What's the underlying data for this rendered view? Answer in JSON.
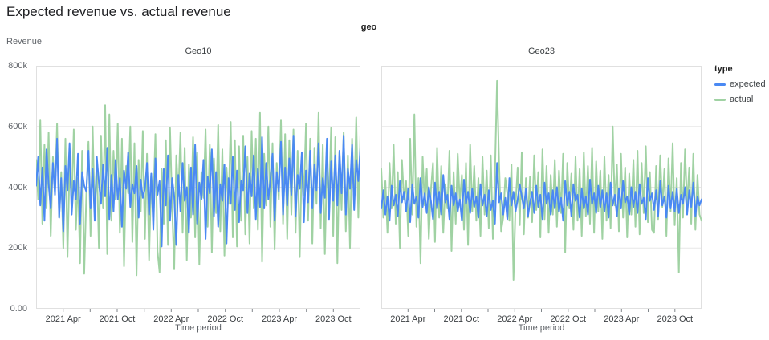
{
  "page_title": "Expected revenue vs. actual revenue",
  "facet_dimension_label": "geo",
  "legend": {
    "title": "type",
    "items": [
      {
        "label": "expected",
        "color": "#4a89f3"
      },
      {
        "label": "actual",
        "color": "#a0d2a3"
      }
    ]
  },
  "colors": {
    "expected_line": "#4a89f3",
    "actual_line": "#a0d2a3",
    "gridline": "#e7e7e7",
    "panel_border": "#e0e0e0",
    "tick_mark": "#80868b",
    "title_text": "#202124",
    "axis_text": "#3c4043",
    "muted_text": "#5f6368"
  },
  "chart_data": {
    "type": "line",
    "title": "Expected revenue vs. actual revenue",
    "facet_by": "geo",
    "xlabel": "Time period",
    "ylabel": "Revenue",
    "ylim": [
      0,
      800000
    ],
    "grid": true,
    "grid_values_k": [
      200,
      400,
      600
    ],
    "y_tick_labels_top_to_bottom": [
      "800k",
      "600k",
      "400k",
      "200k",
      "0.00"
    ],
    "x_range": {
      "start": "2021-01",
      "end": "2023-12",
      "interval": "weekly",
      "points_per_series": 156,
      "span_months": 36
    },
    "x_ticks": [
      {
        "month": 3,
        "label": "2021 Apr"
      },
      {
        "month": 6,
        "label": ""
      },
      {
        "month": 9,
        "label": "2021 Oct"
      },
      {
        "month": 12,
        "label": ""
      },
      {
        "month": 15,
        "label": "2022 Apr"
      },
      {
        "month": 18,
        "label": ""
      },
      {
        "month": 21,
        "label": "2022 Oct"
      },
      {
        "month": 24,
        "label": ""
      },
      {
        "month": 27,
        "label": "2023 Apr"
      },
      {
        "month": 30,
        "label": ""
      },
      {
        "month": 33,
        "label": "2023 Oct"
      }
    ],
    "values_unit": "thousands of revenue (k); estimated from pixels",
    "legend_position": "right",
    "facets": [
      {
        "name": "Geo10",
        "series": [
          {
            "name": "expected",
            "color": "#4a89f3",
            "values_k": [
              405,
              500,
              340,
              465,
              290,
              525,
              410,
              330,
              480,
              375,
              560,
              300,
              430,
              255,
              470,
              390,
              545,
              310,
              420,
              360,
              510,
              280,
              450,
              405,
              385,
              520,
              330,
              460,
              290,
              500,
              415,
              345,
              475,
              370,
              530,
              295,
              440,
              320,
              490,
              360,
              430,
              270,
              455,
              395,
              515,
              335,
              410,
              380,
              470,
              300,
              425,
              365,
              395,
              480,
              310,
              445,
              260,
              495,
              375,
              420,
              205,
              460,
              340,
              505,
              290,
              430,
              370,
              210,
              440,
              320,
              480,
              355,
              400,
              250,
              465,
              310,
              540,
              280,
              415,
              360,
              490,
              230,
              435,
              380,
              525,
              305,
              450,
              270,
              410,
              355,
              475,
              215,
              430,
              345,
              500,
              325,
              455,
              285,
              420,
              390,
              535,
              315,
              445,
              370,
              505,
              295,
              460,
              335,
              565,
              330,
              480,
              360,
              425,
              510,
              290,
              450,
              385,
              550,
              310,
              465,
              340,
              495,
              375,
              570,
              305,
              440,
              395,
              515,
              285,
              455,
              350,
              520,
              330,
              475,
              390,
              545,
              315,
              430,
              365,
              560,
              295,
              485,
              355,
              505,
              340,
              520,
              380,
              570,
              310,
              460,
              395,
              540,
              325,
              490,
              420,
              530
            ]
          },
          {
            "name": "actual",
            "color": "#a0d2a3",
            "values_k": [
              490,
              360,
              620,
              280,
              540,
              330,
              580,
              240,
              500,
              390,
              610,
              300,
              450,
              200,
              560,
              170,
              480,
              350,
              590,
              260,
              430,
              150,
              520,
              115,
              380,
              550,
              240,
              600,
              310,
              480,
              200,
              570,
              330,
              670,
              180,
              640,
              290,
              520,
              360,
              610,
              250,
              560,
              140,
              470,
              380,
              600,
              220,
              545,
              110,
              490,
              320,
              585,
              230,
              510,
              160,
              440,
              350,
              575,
              190,
              120,
              460,
              280,
              555,
              210,
              595,
              340,
              130,
              505,
              370,
              580,
              250,
              530,
              160,
              475,
              300,
              565,
              235,
              515,
              145,
              450,
              365,
              590,
              270,
              540,
              185,
              495,
              315,
              605,
              255,
              525,
              175,
              465,
              345,
              615,
              235,
              555,
              205,
              535,
              290,
              570,
              245,
              500,
              215,
              585,
              330,
              560,
              260,
              645,
              155,
              510,
              340,
              600,
              270,
              545,
              195,
              480,
              360,
              620,
              280,
              575,
              230,
              555,
              310,
              590,
              250,
              520,
              170,
              495,
              375,
              610,
              290,
              560,
              215,
              530,
              345,
              645,
              265,
              540,
              180,
              475,
              355,
              595,
              240,
              565,
              150,
              515,
              325,
              580,
              255,
              505,
              200,
              560,
              340,
              630,
              300,
              575
            ]
          }
        ]
      },
      {
        "name": "Geo23",
        "series": [
          {
            "name": "expected",
            "color": "#4a89f3",
            "values_k": [
              330,
              390,
              310,
              370,
              290,
              405,
              340,
              375,
              305,
              420,
              350,
              385,
              320,
              395,
              285,
              410,
              345,
              370,
              300,
              430,
              335,
              380,
              315,
              400,
              355,
              295,
              415,
              330,
              385,
              310,
              440,
              350,
              375,
              295,
              405,
              340,
              380,
              320,
              360,
              290,
              425,
              345,
              385,
              315,
              395,
              335,
              370,
              300,
              410,
              340,
              375,
              305,
              390,
              325,
              355,
              280,
              480,
              350,
              380,
              310,
              365,
              295,
              430,
              340,
              385,
              320,
              360,
              410,
              370,
              330,
              395,
              305,
              350,
              385,
              315,
              405,
              335,
              375,
              295,
              415,
              345,
              380,
              310,
              390,
              330,
              400,
              320,
              365,
              290,
              420,
              340,
              385,
              305,
              410,
              355,
              375,
              300,
              395,
              330,
              370,
              310,
              425,
              345,
              380,
              315,
              405,
              335,
              390,
              320,
              380,
              300,
              415,
              340,
              375,
              305,
              395,
              330,
              420,
              350,
              370,
              310,
              400,
              335,
              385,
              315,
              410,
              345,
              365,
              295,
              430,
              355,
              380,
              325,
              390,
              305,
              420,
              340,
              370,
              300,
              405,
              330,
              385,
              320,
              395,
              315,
              375,
              345,
              400,
              310,
              390,
              335,
              415,
              305,
              370,
              340,
              360
            ]
          },
          {
            "name": "actual",
            "color": "#a0d2a3",
            "values_k": [
              460,
              300,
              420,
              250,
              480,
              330,
              540,
              280,
              450,
              200,
              490,
              360,
              420,
              240,
              560,
              310,
              640,
              270,
              430,
              150,
              500,
              340,
              460,
              230,
              390,
              480,
              220,
              530,
              300,
              470,
              250,
              410,
              330,
              520,
              190,
              450,
              280,
              510,
              350,
              440,
              260,
              480,
              210,
              540,
              320,
              470,
              290,
              430,
              240,
              500,
              310,
              455,
              265,
              505,
              230,
              445,
              750,
              485,
              255,
              300,
              430,
              380,
              290,
              475,
              95,
              345,
              465,
              275,
              515,
              245,
              430,
              300,
              435,
              285,
              505,
              325,
              450,
              235,
              525,
              295,
              470,
              250,
              440,
              310,
              490,
              270,
              455,
              315,
              510,
              185,
              480,
              330,
              445,
              260,
              500,
              290,
              460,
              240,
              515,
              305,
              470,
              280,
              530,
              250,
              485,
              320,
              455,
              230,
              500,
              290,
              440,
              265,
              600,
              340,
              475,
              255,
              510,
              300,
              465,
              235,
              445,
              310,
              490,
              270,
              520,
              245,
              480,
              315,
              535,
              285,
              450,
              260,
              250,
              470,
              295,
              505,
              335,
              460,
              240,
              495,
              320,
              545,
              275,
              430,
              120,
              480,
              300,
              525,
              340,
              465,
              280,
              510,
              260,
              440,
              310,
              290
            ]
          }
        ]
      }
    ]
  }
}
